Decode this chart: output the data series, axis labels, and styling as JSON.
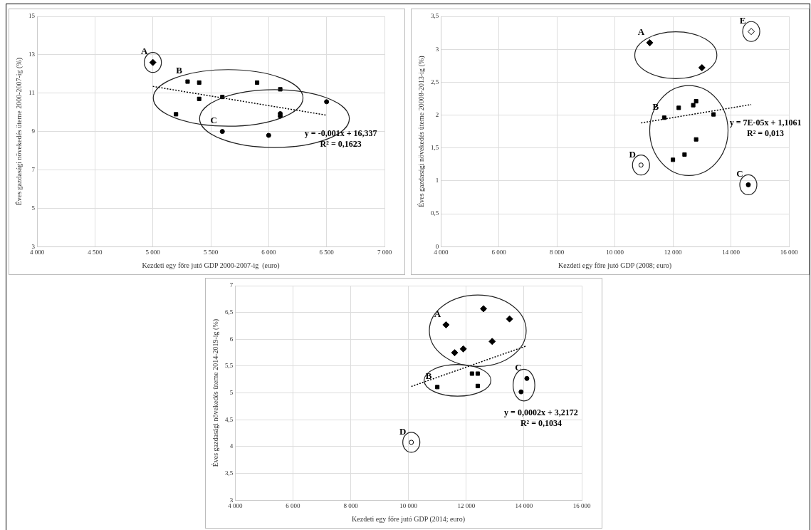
{
  "chart_data": [
    {
      "type": "scatter",
      "xlabel": "Kezdeti egy főre jutó GDP 2000-2007-ig  (euro)",
      "ylabel": "Éves gazdasági növekedés üteme 2000-2007-ig (%)",
      "xlim": [
        4000,
        7000
      ],
      "xticks": [
        {
          "value": 4000,
          "label": "4 000"
        },
        {
          "value": 4500,
          "label": "4 500"
        },
        {
          "value": 5000,
          "label": "5 000"
        },
        {
          "value": 5500,
          "label": "5 500"
        },
        {
          "value": 6000,
          "label": "6 000"
        },
        {
          "value": 6500,
          "label": "6 500"
        },
        {
          "value": 7000,
          "label": "7 000"
        }
      ],
      "ylim": [
        3,
        15
      ],
      "yticks": [
        3,
        5,
        7,
        9,
        11,
        13,
        15
      ],
      "grid": true,
      "legend": false,
      "series": [
        {
          "name": "A",
          "color": "#000000",
          "marker": "diamond",
          "x": [
            5000
          ],
          "values": [
            12.6
          ]
        },
        {
          "name": "B",
          "color": "#000000",
          "marker": "square",
          "x": [
            5300,
            5400,
            5400,
            5600,
            5200,
            5900,
            6100
          ],
          "values": [
            11.6,
            11.55,
            10.7,
            10.8,
            9.9,
            11.55,
            11.2
          ]
        },
        {
          "name": "C",
          "color": "#000000",
          "marker": "circle",
          "x": [
            5600,
            6000,
            6100,
            6100,
            6500
          ],
          "values": [
            9.0,
            8.8,
            9.93,
            9.8,
            10.55
          ]
        },
        {
          "type": "line",
          "color": "#000000",
          "marker": "none",
          "line_style": "dotted",
          "x": [
            5000,
            6500
          ],
          "values": [
            11.35,
            9.85
          ]
        }
      ],
      "annotations": [
        "y = -0,001x + 16,337",
        "R² = 0,1623"
      ]
    },
    {
      "type": "scatter",
      "xlabel": "Kezdeti egy főre jutó GDP (2008; euro)",
      "ylabel": "Éves gazdasági növekedés üteme 20008-2013-ig (%)",
      "xlim": [
        4000,
        16000
      ],
      "xticks": [
        {
          "value": 4000,
          "label": "4 000"
        },
        {
          "value": 6000,
          "label": "6 000"
        },
        {
          "value": 8000,
          "label": "8 000"
        },
        {
          "value": 10000,
          "label": "10 000"
        },
        {
          "value": 12000,
          "label": "12 000"
        },
        {
          "value": 14000,
          "label": "14 000"
        },
        {
          "value": 16000,
          "label": "16 000"
        }
      ],
      "ylim": [
        0,
        3.5
      ],
      "yticks": [
        0,
        {
          "value": 0.5,
          "label": "0,5"
        },
        1,
        {
          "value": 1.5,
          "label": "1,5"
        },
        2,
        {
          "value": 2.5,
          "label": "2,5"
        },
        3,
        {
          "value": 3.5,
          "label": "3,5"
        }
      ],
      "grid": true,
      "legend": false,
      "series": [
        {
          "name": "A",
          "color": "#000000",
          "marker": "diamond",
          "x": [
            11200,
            13000
          ],
          "values": [
            3.1,
            2.72
          ]
        },
        {
          "name": "E",
          "color": "#ffffff",
          "marker": "diamond",
          "x": [
            14700
          ],
          "values": [
            3.27
          ]
        },
        {
          "name": "B",
          "color": "#000000",
          "marker": "square",
          "x": [
            11700,
            12200,
            12700,
            12800,
            13400,
            12800,
            12400,
            12000
          ],
          "values": [
            1.96,
            2.11,
            2.15,
            2.21,
            2.01,
            1.63,
            1.4,
            1.32
          ]
        },
        {
          "name": "D",
          "color": "#ffffff",
          "marker": "circle",
          "x": [
            10900
          ],
          "values": [
            1.24
          ]
        },
        {
          "name": "C",
          "color": "#000000",
          "marker": "circle",
          "x": [
            14600
          ],
          "values": [
            0.94
          ]
        },
        {
          "type": "line",
          "color": "#000000",
          "marker": "none",
          "line_style": "dotted",
          "x": [
            10900,
            14700
          ],
          "values": [
            1.88,
            2.16
          ]
        }
      ],
      "annotations": [
        "y = 7E-05x + 1,1061",
        "R² = 0,013"
      ]
    },
    {
      "type": "scatter",
      "xlabel": "Kezdeti egy főre jutó GDP (2014; euro)",
      "ylabel": "Éves gazdasági növekedés üteme 2014-2019-ig (%)",
      "xlim": [
        4000,
        16000
      ],
      "xticks": [
        {
          "value": 4000,
          "label": "4 000"
        },
        {
          "value": 6000,
          "label": "6 000"
        },
        {
          "value": 8000,
          "label": "8 000"
        },
        {
          "value": 10000,
          "label": "10 000"
        },
        {
          "value": 12000,
          "label": "12 000"
        },
        {
          "value": 14000,
          "label": "14 000"
        },
        {
          "value": 16000,
          "label": "16 000"
        }
      ],
      "ylim": [
        3,
        7
      ],
      "yticks": [
        3,
        {
          "value": 3.5,
          "label": "3,5"
        },
        4,
        {
          "value": 4.5,
          "label": "4,5"
        },
        5,
        {
          "value": 5.5,
          "label": "5,5"
        },
        6,
        {
          "value": 6.5,
          "label": "6,5"
        },
        7
      ],
      "grid": true,
      "legend": false,
      "series": [
        {
          "name": "A",
          "color": "#000000",
          "marker": "diamond",
          "x": [
            11300,
            11600,
            11900,
            12600,
            12900,
            13500
          ],
          "values": [
            6.27,
            5.75,
            5.82,
            6.57,
            5.96,
            6.38
          ]
        },
        {
          "name": "B",
          "color": "#000000",
          "marker": "square",
          "x": [
            11000,
            12200,
            12400,
            12400
          ],
          "values": [
            5.11,
            5.36,
            5.36,
            5.13
          ]
        },
        {
          "name": "C",
          "color": "#000000",
          "marker": "circle",
          "x": [
            13900,
            14100
          ],
          "values": [
            5.02,
            5.27
          ]
        },
        {
          "name": "D",
          "color": "#ffffff",
          "marker": "circle",
          "x": [
            10100
          ],
          "values": [
            4.08
          ]
        },
        {
          "type": "line",
          "color": "#000000",
          "marker": "none",
          "line_style": "dotted",
          "x": [
            10100,
            14100
          ],
          "values": [
            5.12,
            5.88
          ]
        }
      ],
      "annotations": [
        "y = 0,0002x + 3,2172",
        "R² = 0,1034"
      ]
    }
  ]
}
